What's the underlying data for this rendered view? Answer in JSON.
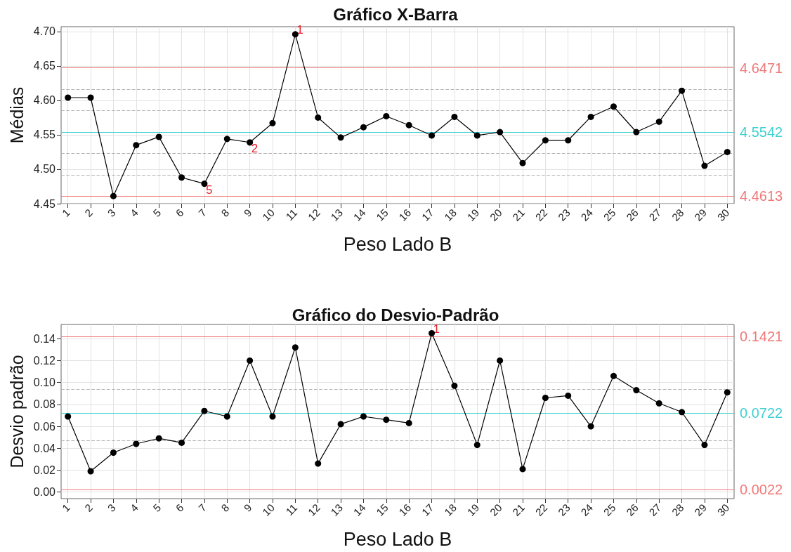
{
  "chart_data": [
    {
      "type": "line",
      "title": "Gráfico X-Barra",
      "xlabel": "Peso Lado B",
      "ylabel": "Médias",
      "x": [
        1,
        2,
        3,
        4,
        5,
        6,
        7,
        8,
        9,
        10,
        11,
        12,
        13,
        14,
        15,
        16,
        17,
        18,
        19,
        20,
        21,
        22,
        23,
        24,
        25,
        26,
        27,
        28,
        29,
        30
      ],
      "values": [
        4.604,
        4.604,
        4.461,
        4.535,
        4.547,
        4.488,
        4.479,
        4.544,
        4.539,
        4.567,
        4.696,
        4.575,
        4.546,
        4.561,
        4.577,
        4.564,
        4.549,
        4.576,
        4.549,
        4.554,
        4.509,
        4.542,
        4.542,
        4.576,
        4.591,
        4.554,
        4.569,
        4.614,
        4.505,
        4.525
      ],
      "color": "#000000",
      "marker": "circle",
      "line_style": "solid",
      "grid": true,
      "xlim": [
        0.7,
        30.3
      ],
      "xticks": [
        1,
        2,
        3,
        4,
        5,
        6,
        7,
        8,
        9,
        10,
        11,
        12,
        13,
        14,
        15,
        16,
        17,
        18,
        19,
        20,
        21,
        22,
        23,
        24,
        25,
        26,
        27,
        28,
        29,
        30
      ],
      "ylim": [
        4.45,
        4.707
      ],
      "yticks": [
        {
          "value": 4.45,
          "label": "4.45"
        },
        {
          "value": 4.5,
          "label": "4.50"
        },
        {
          "value": 4.55,
          "label": "4.55"
        },
        {
          "value": 4.6,
          "label": "4.60"
        },
        {
          "value": 4.65,
          "label": "4.65"
        },
        {
          "value": 4.7,
          "label": "4.70"
        }
      ],
      "ref_lines": [
        {
          "axis": "y",
          "value": 4.6471,
          "label": "4.6471",
          "color": "#f07878",
          "line_style": "solid"
        },
        {
          "axis": "y",
          "value": 4.5542,
          "label": "4.5542",
          "color": "#40d0d0",
          "line_style": "solid"
        },
        {
          "axis": "y",
          "value": 4.4613,
          "label": "4.4613",
          "color": "#f07878",
          "line_style": "solid"
        },
        {
          "axis": "y",
          "value": 4.616,
          "color": "#b4b4b4",
          "line_style": "dashed"
        },
        {
          "axis": "y",
          "value": 4.585,
          "color": "#b4b4b4",
          "line_style": "dashed"
        },
        {
          "axis": "y",
          "value": 4.523,
          "color": "#b4b4b4",
          "line_style": "dashed"
        },
        {
          "axis": "y",
          "value": 4.492,
          "color": "#b4b4b4",
          "line_style": "dashed"
        }
      ],
      "annotations": [
        {
          "text": "1",
          "x": 11,
          "y": 4.696
        },
        {
          "text": "2",
          "x": 9,
          "y": 4.539
        },
        {
          "text": "5",
          "x": 7,
          "y": 4.479
        }
      ]
    },
    {
      "type": "line",
      "title": "Gráfico do Desvio-Padrão",
      "xlabel": "Peso Lado B",
      "ylabel": "Desvio padrão",
      "x": [
        1,
        2,
        3,
        4,
        5,
        6,
        7,
        8,
        9,
        10,
        11,
        12,
        13,
        14,
        15,
        16,
        17,
        18,
        19,
        20,
        21,
        22,
        23,
        24,
        25,
        26,
        27,
        28,
        29,
        30
      ],
      "values": [
        0.069,
        0.019,
        0.036,
        0.044,
        0.049,
        0.045,
        0.074,
        0.069,
        0.12,
        0.069,
        0.132,
        0.026,
        0.062,
        0.069,
        0.066,
        0.063,
        0.145,
        0.097,
        0.043,
        0.12,
        0.021,
        0.086,
        0.088,
        0.06,
        0.106,
        0.093,
        0.081,
        0.073,
        0.043,
        0.091
      ],
      "color": "#000000",
      "marker": "circle",
      "line_style": "solid",
      "grid": true,
      "xlim": [
        0.7,
        30.3
      ],
      "xticks": [
        1,
        2,
        3,
        4,
        5,
        6,
        7,
        8,
        9,
        10,
        11,
        12,
        13,
        14,
        15,
        16,
        17,
        18,
        19,
        20,
        21,
        22,
        23,
        24,
        25,
        26,
        27,
        28,
        29,
        30
      ],
      "ylim": [
        -0.006,
        0.153
      ],
      "yticks": [
        {
          "value": 0,
          "label": "0.00"
        },
        {
          "value": 0.02,
          "label": "0.02"
        },
        {
          "value": 0.04,
          "label": "0.04"
        },
        {
          "value": 0.06,
          "label": "0.06"
        },
        {
          "value": 0.08,
          "label": "0.08"
        },
        {
          "value": 0.1,
          "label": "0.10"
        },
        {
          "value": 0.12,
          "label": "0.12"
        },
        {
          "value": 0.14,
          "label": "0.14"
        }
      ],
      "ref_lines": [
        {
          "axis": "y",
          "value": 0.1421,
          "label": "0.1421",
          "color": "#f07878",
          "line_style": "solid"
        },
        {
          "axis": "y",
          "value": 0.0722,
          "label": "0.0722",
          "color": "#40d0d0",
          "line_style": "solid"
        },
        {
          "axis": "y",
          "value": 0.0022,
          "label": "0.0022",
          "color": "#f07878",
          "line_style": "solid"
        },
        {
          "axis": "y",
          "value": 0.094,
          "color": "#b4b4b4",
          "line_style": "dashed"
        },
        {
          "axis": "y",
          "value": 0.047,
          "color": "#b4b4b4",
          "line_style": "dashed"
        }
      ],
      "annotations": [
        {
          "text": "1",
          "x": 17,
          "y": 0.145
        }
      ]
    }
  ]
}
